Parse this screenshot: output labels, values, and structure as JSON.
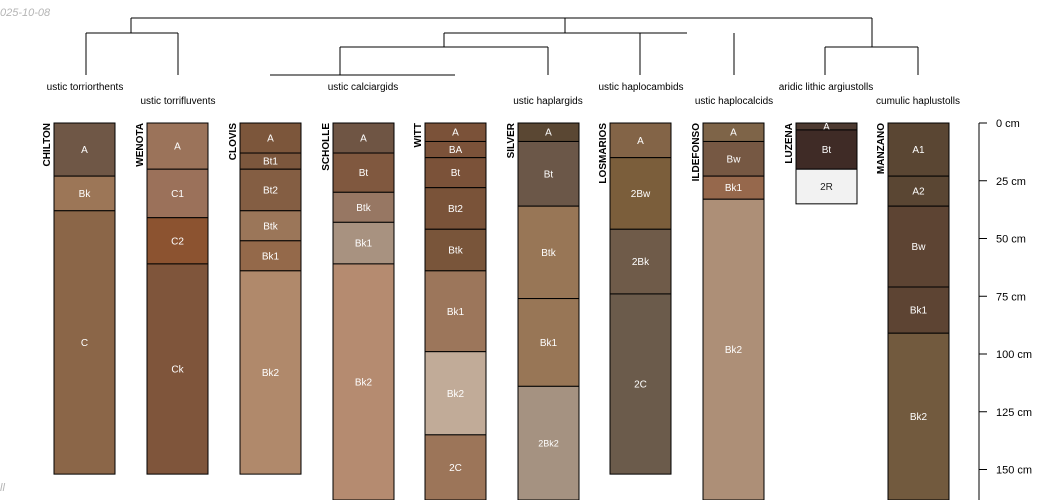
{
  "stamp_top": "025-10-08",
  "stamp_bottom": "ll",
  "taxa": [
    "ustic torriorthents",
    "ustic torrifluvents",
    "ustic calciargids",
    "ustic haplargids",
    "ustic haplocambids",
    "ustic haplocalcids",
    "aridic lithic argiustolls",
    "cumulic haplustolls"
  ],
  "depth_axis": {
    "unit": "cm",
    "ticks": [
      {
        "depth": 0,
        "label": "0 cm"
      },
      {
        "depth": 25,
        "label": "25 cm"
      },
      {
        "depth": 50,
        "label": "50 cm"
      },
      {
        "depth": 75,
        "label": "75 cm"
      },
      {
        "depth": 100,
        "label": "100 cm"
      },
      {
        "depth": 125,
        "label": "125 cm"
      },
      {
        "depth": 150,
        "label": "150 cm"
      }
    ]
  },
  "profiles": [
    {
      "name": "CHILTON",
      "horizons": [
        {
          "name": "A",
          "top": 0,
          "bottom": 23,
          "color": "#6f5746"
        },
        {
          "name": "Bk",
          "top": 23,
          "bottom": 38,
          "color": "#9c7657"
        },
        {
          "name": "C",
          "top": 38,
          "bottom": 152,
          "color": "#8b6648"
        }
      ]
    },
    {
      "name": "WENOTA",
      "horizons": [
        {
          "name": "A",
          "top": 0,
          "bottom": 20,
          "color": "#9b735a"
        },
        {
          "name": "C1",
          "top": 20,
          "bottom": 41,
          "color": "#9b715a"
        },
        {
          "name": "C2",
          "top": 41,
          "bottom": 61,
          "color": "#8c5330"
        },
        {
          "name": "Ck",
          "top": 61,
          "bottom": 152,
          "color": "#7f553b"
        }
      ]
    },
    {
      "name": "CLOVIS",
      "horizons": [
        {
          "name": "A",
          "top": 0,
          "bottom": 13,
          "color": "#7c563b"
        },
        {
          "name": "Bt1",
          "top": 13,
          "bottom": 20,
          "color": "#7c573d"
        },
        {
          "name": "Bt2",
          "top": 20,
          "bottom": 38,
          "color": "#845e43"
        },
        {
          "name": "Btk",
          "top": 38,
          "bottom": 51,
          "color": "#9b7659"
        },
        {
          "name": "Bk1",
          "top": 51,
          "bottom": 64,
          "color": "#94694a"
        },
        {
          "name": "Bk2",
          "top": 64,
          "bottom": 152,
          "color": "#b0896b"
        }
      ]
    },
    {
      "name": "SCHOLLE",
      "horizons": [
        {
          "name": "A",
          "top": 0,
          "bottom": 13,
          "color": "#6f5544"
        },
        {
          "name": "Bt",
          "top": 13,
          "bottom": 30,
          "color": "#80583f"
        },
        {
          "name": "Btk",
          "top": 30,
          "bottom": 43,
          "color": "#977763"
        },
        {
          "name": "Bk1",
          "top": 43,
          "bottom": 61,
          "color": "#a89280"
        },
        {
          "name": "Bk2",
          "top": 61,
          "bottom": 165,
          "color": "#b58b70"
        }
      ]
    },
    {
      "name": "WITT",
      "horizons": [
        {
          "name": "A",
          "top": 0,
          "bottom": 8,
          "color": "#7b5239"
        },
        {
          "name": "BA",
          "top": 8,
          "bottom": 15,
          "color": "#7b5239"
        },
        {
          "name": "Bt",
          "top": 15,
          "bottom": 28,
          "color": "#7b5239"
        },
        {
          "name": "Bt2",
          "top": 28,
          "bottom": 46,
          "color": "#7a5339"
        },
        {
          "name": "Btk",
          "top": 46,
          "bottom": 64,
          "color": "#79553a"
        },
        {
          "name": "Bk1",
          "top": 64,
          "bottom": 99,
          "color": "#9c765b"
        },
        {
          "name": "Bk2",
          "top": 99,
          "bottom": 135,
          "color": "#c1ab98"
        },
        {
          "name": "2C",
          "top": 135,
          "bottom": 165,
          "color": "#9c7559"
        }
      ]
    },
    {
      "name": "SILVER",
      "horizons": [
        {
          "name": "A",
          "top": 0,
          "bottom": 8,
          "color": "#5a4733"
        },
        {
          "name": "Bt",
          "top": 8,
          "bottom": 36,
          "color": "#6b5748"
        },
        {
          "name": "Btk",
          "top": 36,
          "bottom": 76,
          "color": "#987656"
        },
        {
          "name": "Bk1",
          "top": 76,
          "bottom": 114,
          "color": "#987656"
        },
        {
          "name": "2Bk2",
          "top": 114,
          "bottom": 165,
          "color": "#a59281"
        }
      ]
    },
    {
      "name": "LOSMARIOS",
      "horizons": [
        {
          "name": "A",
          "top": 0,
          "bottom": 15,
          "color": "#836447"
        },
        {
          "name": "2Bw",
          "top": 15,
          "bottom": 46,
          "color": "#7b5e3b"
        },
        {
          "name": "2Bk",
          "top": 46,
          "bottom": 74,
          "color": "#6f5b49"
        },
        {
          "name": "2C",
          "top": 74,
          "bottom": 152,
          "color": "#6b5b4b"
        }
      ]
    },
    {
      "name": "ILDEFONSO",
      "horizons": [
        {
          "name": "A",
          "top": 0,
          "bottom": 8,
          "color": "#7e6448"
        },
        {
          "name": "Bw",
          "top": 8,
          "bottom": 23,
          "color": "#765843"
        },
        {
          "name": "Bk1",
          "top": 23,
          "bottom": 33,
          "color": "#96684c"
        },
        {
          "name": "Bk2",
          "top": 33,
          "bottom": 165,
          "color": "#ad8f77"
        }
      ]
    },
    {
      "name": "LUZENA",
      "horizons": [
        {
          "name": "A",
          "top": 0,
          "bottom": 3,
          "color": "#4d3a31"
        },
        {
          "name": "Bt",
          "top": 3,
          "bottom": 20,
          "color": "#3f2b26"
        },
        {
          "name": "2R",
          "top": 20,
          "bottom": 35,
          "color": "#f2f2f2"
        }
      ]
    },
    {
      "name": "MANZANO",
      "horizons": [
        {
          "name": "A1",
          "top": 0,
          "bottom": 23,
          "color": "#5a4633"
        },
        {
          "name": "A2",
          "top": 23,
          "bottom": 36,
          "color": "#5a4633"
        },
        {
          "name": "Bw",
          "top": 36,
          "bottom": 71,
          "color": "#5d4433"
        },
        {
          "name": "Bk1",
          "top": 71,
          "bottom": 91,
          "color": "#5d4433"
        },
        {
          "name": "Bk2",
          "top": 91,
          "bottom": 165,
          "color": "#725a3e"
        }
      ]
    }
  ]
}
